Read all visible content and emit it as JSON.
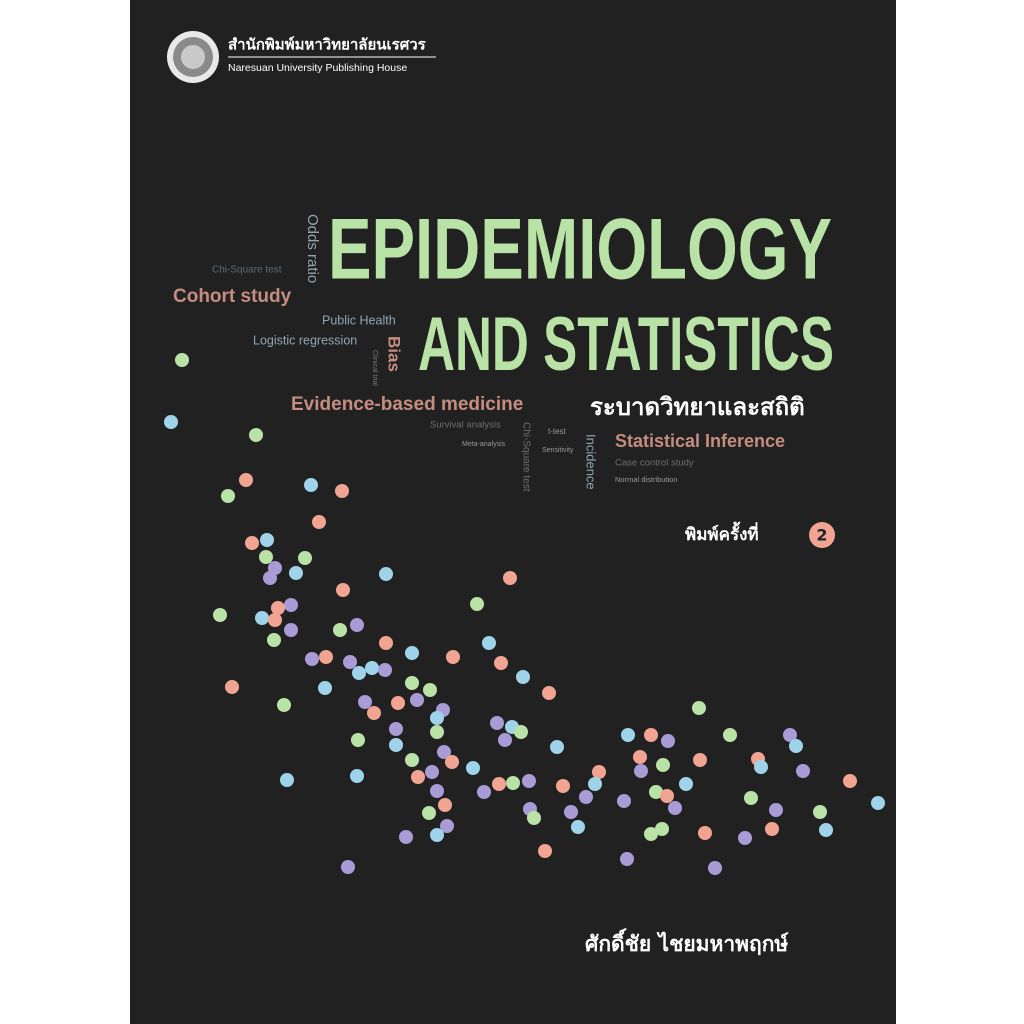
{
  "publisher": {
    "thai": "สำนักพิมพ์มหาวิทยาลัยนเรศวร",
    "english": "Naresuan University Publishing House"
  },
  "title": {
    "line1": "EPIDEMIOLOGY",
    "line2": "AND STATISTICS",
    "thai": "ระบาดวิทยาและสถิติ"
  },
  "keywords": [
    "Odds ratio",
    "Chi-Square test",
    "Cohort study",
    "Public Health",
    "Logistic regression",
    "Bias",
    "Clinical trial",
    "Evidence-based medicine",
    "Survival analysis",
    "Meta-analysis",
    "Chi-Square test",
    "t-test",
    "Sensitivity",
    "Incidence",
    "Statistical Inference",
    "Case control study",
    "Normal distribution"
  ],
  "edition": {
    "label": "พิมพ์ครั้งที่",
    "number": 2
  },
  "author": "ศักดิ์ชัย ไชยมหาพฤกษ์"
}
